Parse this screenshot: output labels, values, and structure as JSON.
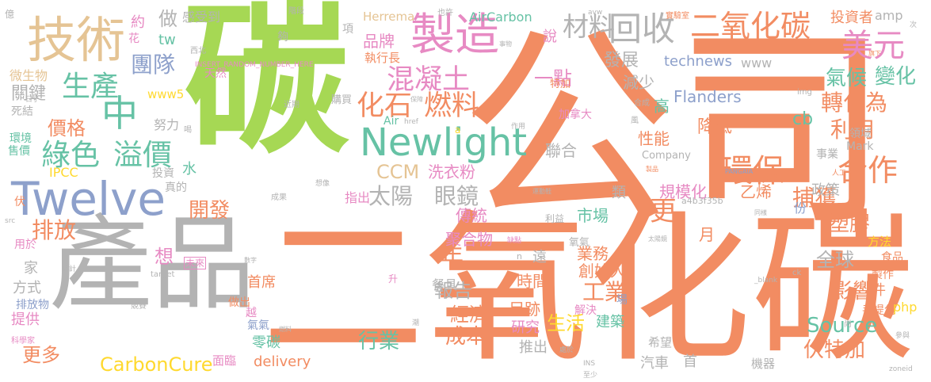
{
  "palette": {
    "orange": "#f28c62",
    "green": "#a6d854",
    "blue": "#8da0cb",
    "pink": "#e78ac3",
    "yellow": "#ffd92f",
    "tan": "#e5c494",
    "gray": "#b3b3b3",
    "teal": "#66c2a5"
  },
  "words": [
    {
      "text": "碳",
      "color": "#a6d854"
    },
    {
      "text": "公司",
      "color": "#f28c62"
    },
    {
      "text": "二氧化碳",
      "color": "#f28c62"
    },
    {
      "text": "產品",
      "color": "#b3b3b3"
    },
    {
      "text": "Twelve",
      "color": "#8da0cb"
    },
    {
      "text": "技術",
      "color": "#e5c494"
    },
    {
      "text": "製造",
      "color": "#e78ac3"
    },
    {
      "text": "Newlight",
      "color": "#66c2a5"
    },
    {
      "text": "二氧化碳",
      "color": "#f28c62"
    },
    {
      "text": "回收",
      "color": "#b3b3b3"
    },
    {
      "text": "材料",
      "color": "#b3b3b3"
    },
    {
      "text": "美元",
      "color": "#e78ac3"
    },
    {
      "text": "中",
      "color": "#66c2a5"
    },
    {
      "text": "生產",
      "color": "#66c2a5"
    },
    {
      "text": "混凝土",
      "color": "#e78ac3"
    },
    {
      "text": "化石",
      "color": "#f28c62"
    },
    {
      "text": "燃料",
      "color": "#f28c62"
    },
    {
      "text": "綠色",
      "color": "#66c2a5"
    },
    {
      "text": "溢價",
      "color": "#66c2a5"
    },
    {
      "text": "環保",
      "color": "#f28c62"
    },
    {
      "text": "合作",
      "color": "#f28c62"
    },
    {
      "text": "太陽",
      "color": "#b3b3b3"
    },
    {
      "text": "眼鏡",
      "color": "#b3b3b3"
    },
    {
      "text": "排放",
      "color": "#f28c62"
    },
    {
      "text": "Source",
      "color": "#66c2a5"
    },
    {
      "text": "CarbonCure",
      "color": "#ffd92f"
    },
    {
      "text": "氣候",
      "color": "#66c2a5"
    },
    {
      "text": "變化",
      "color": "#66c2a5"
    },
    {
      "text": "轉化為",
      "color": "#f28c62"
    },
    {
      "text": "利用",
      "color": "#f28c62"
    },
    {
      "text": "捕獲",
      "color": "#f28c62"
    },
    {
      "text": "塑膠",
      "color": "#f28c62"
    },
    {
      "text": "影響",
      "color": "#f28c62"
    },
    {
      "text": "伏特加",
      "color": "#f28c62"
    },
    {
      "text": "團隊",
      "color": "#8da0cb"
    },
    {
      "text": "價格",
      "color": "#f28c62"
    },
    {
      "text": "開發",
      "color": "#f28c62"
    },
    {
      "text": "更多",
      "color": "#f28c62"
    },
    {
      "text": "降低",
      "color": "#f28c62"
    },
    {
      "text": "更",
      "color": "#f28c62"
    },
    {
      "text": "年",
      "color": "#f28c62"
    },
    {
      "text": "工業",
      "color": "#f28c62"
    },
    {
      "text": "成本",
      "color": "#f28c62"
    },
    {
      "text": "行業",
      "color": "#66c2a5"
    },
    {
      "text": "經濟",
      "color": "#f28c62"
    },
    {
      "text": "報告",
      "color": "#b3b3b3"
    },
    {
      "text": "全球",
      "color": "#b3b3b3"
    },
    {
      "text": "投資者",
      "color": "#f28c62"
    },
    {
      "text": "品牌",
      "color": "#e78ac3"
    },
    {
      "text": "執行長",
      "color": "#f28c62"
    },
    {
      "text": "發展",
      "color": "#b3b3b3"
    },
    {
      "text": "減少",
      "color": "#b3b3b3"
    },
    {
      "text": "technews",
      "color": "#8da0cb"
    },
    {
      "text": "Flanders",
      "color": "#8da0cb"
    },
    {
      "text": "高",
      "color": "#66c2a5"
    },
    {
      "text": "cb",
      "color": "#66c2a5"
    },
    {
      "text": "一點",
      "color": "#e78ac3"
    },
    {
      "text": "性能",
      "color": "#f28c62"
    },
    {
      "text": "聯合",
      "color": "#b3b3b3"
    },
    {
      "text": "CCM",
      "color": "#e5c494"
    },
    {
      "text": "洗衣粉",
      "color": "#e78ac3"
    },
    {
      "text": "規模化",
      "color": "#e78ac3"
    },
    {
      "text": "乙烯",
      "color": "#f28c62"
    },
    {
      "text": "政策",
      "color": "#b3b3b3"
    },
    {
      "text": "市場",
      "color": "#66c2a5"
    },
    {
      "text": "傳統",
      "color": "#e78ac3"
    },
    {
      "text": "聚合物",
      "color": "#e78ac3"
    },
    {
      "text": "業務",
      "color": "#f28c62"
    },
    {
      "text": "創始人",
      "color": "#f28c62"
    },
    {
      "text": "時間",
      "color": "#f28c62"
    },
    {
      "text": "生活",
      "color": "#ffd92f"
    },
    {
      "text": "足跡",
      "color": "#f28c62"
    },
    {
      "text": "研究",
      "color": "#e78ac3"
    },
    {
      "text": "建築",
      "color": "#66c2a5"
    },
    {
      "text": "推出",
      "color": "#b3b3b3"
    },
    {
      "text": "汽車",
      "color": "#b3b3b3"
    },
    {
      "text": "首",
      "color": "#b3b3b3"
    },
    {
      "text": "delivery",
      "color": "#f28c62"
    },
    {
      "text": "零碳",
      "color": "#66c2a5"
    },
    {
      "text": "首席",
      "color": "#f28c62"
    },
    {
      "text": "餐具",
      "color": "#b3b3b3"
    },
    {
      "text": "想",
      "color": "#e78ac3"
    },
    {
      "text": "家",
      "color": "#b3b3b3"
    },
    {
      "text": "方式",
      "color": "#b3b3b3"
    },
    {
      "text": "提供",
      "color": "#e78ac3"
    },
    {
      "text": "關鍵",
      "color": "#b3b3b3"
    },
    {
      "text": "死結",
      "color": "#b3b3b3"
    },
    {
      "text": "環境",
      "color": "#66c2a5"
    },
    {
      "text": "售價",
      "color": "#66c2a5"
    },
    {
      "text": "微生物",
      "color": "#e5c494"
    },
    {
      "text": "IPCC",
      "color": "#ffd92f"
    },
    {
      "text": "水",
      "color": "#66c2a5"
    },
    {
      "text": "投資",
      "color": "#b3b3b3"
    },
    {
      "text": "做",
      "color": "#b3b3b3"
    },
    {
      "text": "約",
      "color": "#e78ac3"
    },
    {
      "text": "花",
      "color": "#e78ac3"
    },
    {
      "text": "tw",
      "color": "#66c2a5"
    },
    {
      "text": "感受到",
      "color": "#b3b3b3"
    },
    {
      "text": "Herrema",
      "color": "#e5c494"
    },
    {
      "text": "AirCarbon",
      "color": "#66c2a5"
    },
    {
      "text": "說",
      "color": "#e78ac3"
    },
    {
      "text": "amp",
      "color": "#b3b3b3"
    },
    {
      "text": "www",
      "color": "#b3b3b3"
    },
    {
      "text": "www5",
      "color": "#ffd92f"
    },
    {
      "text": "天然",
      "color": "#e78ac3"
    },
    {
      "text": "努力",
      "color": "#b3b3b3"
    },
    {
      "text": "真的",
      "color": "#b3b3b3"
    },
    {
      "text": "指出",
      "color": "#e78ac3"
    },
    {
      "text": "加拿大",
      "color": "#e78ac3"
    },
    {
      "text": "未來",
      "color": "#e78ac3"
    },
    {
      "text": "用於",
      "color": "#e78ac3"
    },
    {
      "text": "排放物",
      "color": "#8da0cb"
    },
    {
      "text": "科學家",
      "color": "#e78ac3"
    },
    {
      "text": "方法",
      "color": "#ffd92f"
    },
    {
      "text": "食品",
      "color": "#f28c62"
    },
    {
      "text": "製作",
      "color": "#f28c62"
    },
    {
      "text": "手提包",
      "color": "#f28c62"
    },
    {
      "text": "php",
      "color": "#ffd92f"
    },
    {
      "text": "件",
      "color": "#f28c62"
    },
    {
      "text": "月",
      "color": "#f28c62"
    },
    {
      "text": "份",
      "color": "#8da0cb"
    },
    {
      "text": "Mark",
      "color": "#b3b3b3"
    },
    {
      "text": "領域",
      "color": "#b3b3b3"
    },
    {
      "text": "事業",
      "color": "#b3b3b3"
    },
    {
      "text": "Company",
      "color": "#b3b3b3"
    },
    {
      "text": "a4b3f35b",
      "color": "#b3b3b3"
    },
    {
      "text": "類",
      "color": "#b3b3b3"
    },
    {
      "text": "遠",
      "color": "#b3b3b3"
    },
    {
      "text": "面臨",
      "color": "#e78ac3"
    },
    {
      "text": "機器",
      "color": "#b3b3b3"
    },
    {
      "text": "希望",
      "color": "#b3b3b3"
    },
    {
      "text": "氧氣",
      "color": "#b3b3b3"
    },
    {
      "text": "解決",
      "color": "#e78ac3"
    },
    {
      "text": "場",
      "color": "#8da0cb"
    },
    {
      "text": "做出",
      "color": "#f28c62"
    },
    {
      "text": "越",
      "color": "#e78ac3"
    },
    {
      "text": "氣氣",
      "color": "#8da0cb"
    },
    {
      "text": "Air",
      "color": "#66c2a5"
    },
    {
      "text": "特加",
      "color": "#f28c62"
    },
    {
      "text": "購買",
      "color": "#b3b3b3"
    },
    {
      "text": "項",
      "color": "#b3b3b3"
    },
    {
      "text": "夠",
      "color": "#b3b3b3"
    },
    {
      "text": "競賽",
      "color": "#b3b3b3"
    },
    {
      "text": "成果",
      "color": "#b3b3b3"
    },
    {
      "text": "INSERT_RANDOM_NUMBER_HERE",
      "color": "#e78ac3"
    },
    {
      "text": "西北",
      "color": "#b3b3b3"
    },
    {
      "text": "億",
      "color": "#b3b3b3"
    },
    {
      "text": "階段",
      "color": "#b3b3b3"
    },
    {
      "text": "也許",
      "color": "#b3b3b3"
    },
    {
      "text": "實驗室",
      "color": "#f28c62"
    },
    {
      "text": "合成",
      "color": "#b3b3b3"
    },
    {
      "text": "伏",
      "color": "#f28c62"
    },
    {
      "text": "PANGAIA",
      "color": "#8da0cb"
    },
    {
      "text": "zoneid",
      "color": "#b3b3b3"
    },
    {
      "text": "升",
      "color": "#e78ac3"
    },
    {
      "text": "利益",
      "color": "#b3b3b3"
    },
    {
      "text": "n",
      "color": "#b3b3b3"
    },
    {
      "text": "ck",
      "color": "#b3b3b3"
    },
    {
      "text": "_blank",
      "color": "#b3b3b3"
    },
    {
      "text": "運動鞋",
      "color": "#b3b3b3"
    },
    {
      "text": "人工",
      "color": "#f28c62"
    },
    {
      "text": "中國",
      "color": "#f28c62"
    },
    {
      "text": "旗下",
      "color": "#f28c62"
    },
    {
      "text": "次",
      "color": "#b3b3b3"
    },
    {
      "text": "近期",
      "color": "#b3b3b3"
    },
    {
      "text": "日子",
      "color": "#b3b3b3"
    },
    {
      "text": "href",
      "color": "#b3b3b3"
    },
    {
      "text": "作用",
      "color": "#b3b3b3"
    },
    {
      "text": "製品",
      "color": "#f28c62"
    },
    {
      "text": "數字",
      "color": "#b3b3b3"
    },
    {
      "text": "估計",
      "color": "#b3b3b3"
    },
    {
      "text": "target",
      "color": "#b3b3b3"
    },
    {
      "text": "處於",
      "color": "#b3b3b3"
    },
    {
      "text": "燃料",
      "color": "#b3b3b3"
    },
    {
      "text": "風",
      "color": "#b3b3b3"
    },
    {
      "text": "src",
      "color": "#b3b3b3"
    },
    {
      "text": "img",
      "color": "#b3b3b3"
    },
    {
      "text": "INS",
      "color": "#b3b3b3"
    },
    {
      "text": "尚",
      "color": "#b3b3b3"
    },
    {
      "text": "avw",
      "color": "#b3b3b3"
    },
    {
      "text": "參與",
      "color": "#b3b3b3"
    },
    {
      "text": "喝",
      "color": "#b3b3b3"
    },
    {
      "text": "潮",
      "color": "#b3b3b3"
    },
    {
      "text": "a",
      "color": "#ffd92f"
    },
    {
      "text": "至少",
      "color": "#b3b3b3"
    },
    {
      "text": "太陽鏡",
      "color": "#b3b3b3"
    },
    {
      "text": "同樣",
      "color": "#b3b3b3"
    },
    {
      "text": "缺點",
      "color": "#e78ac3"
    },
    {
      "text": "想像",
      "color": "#b3b3b3"
    },
    {
      "text": "事物",
      "color": "#b3b3b3"
    },
    {
      "text": "保障",
      "color": "#b3b3b3"
    }
  ]
}
